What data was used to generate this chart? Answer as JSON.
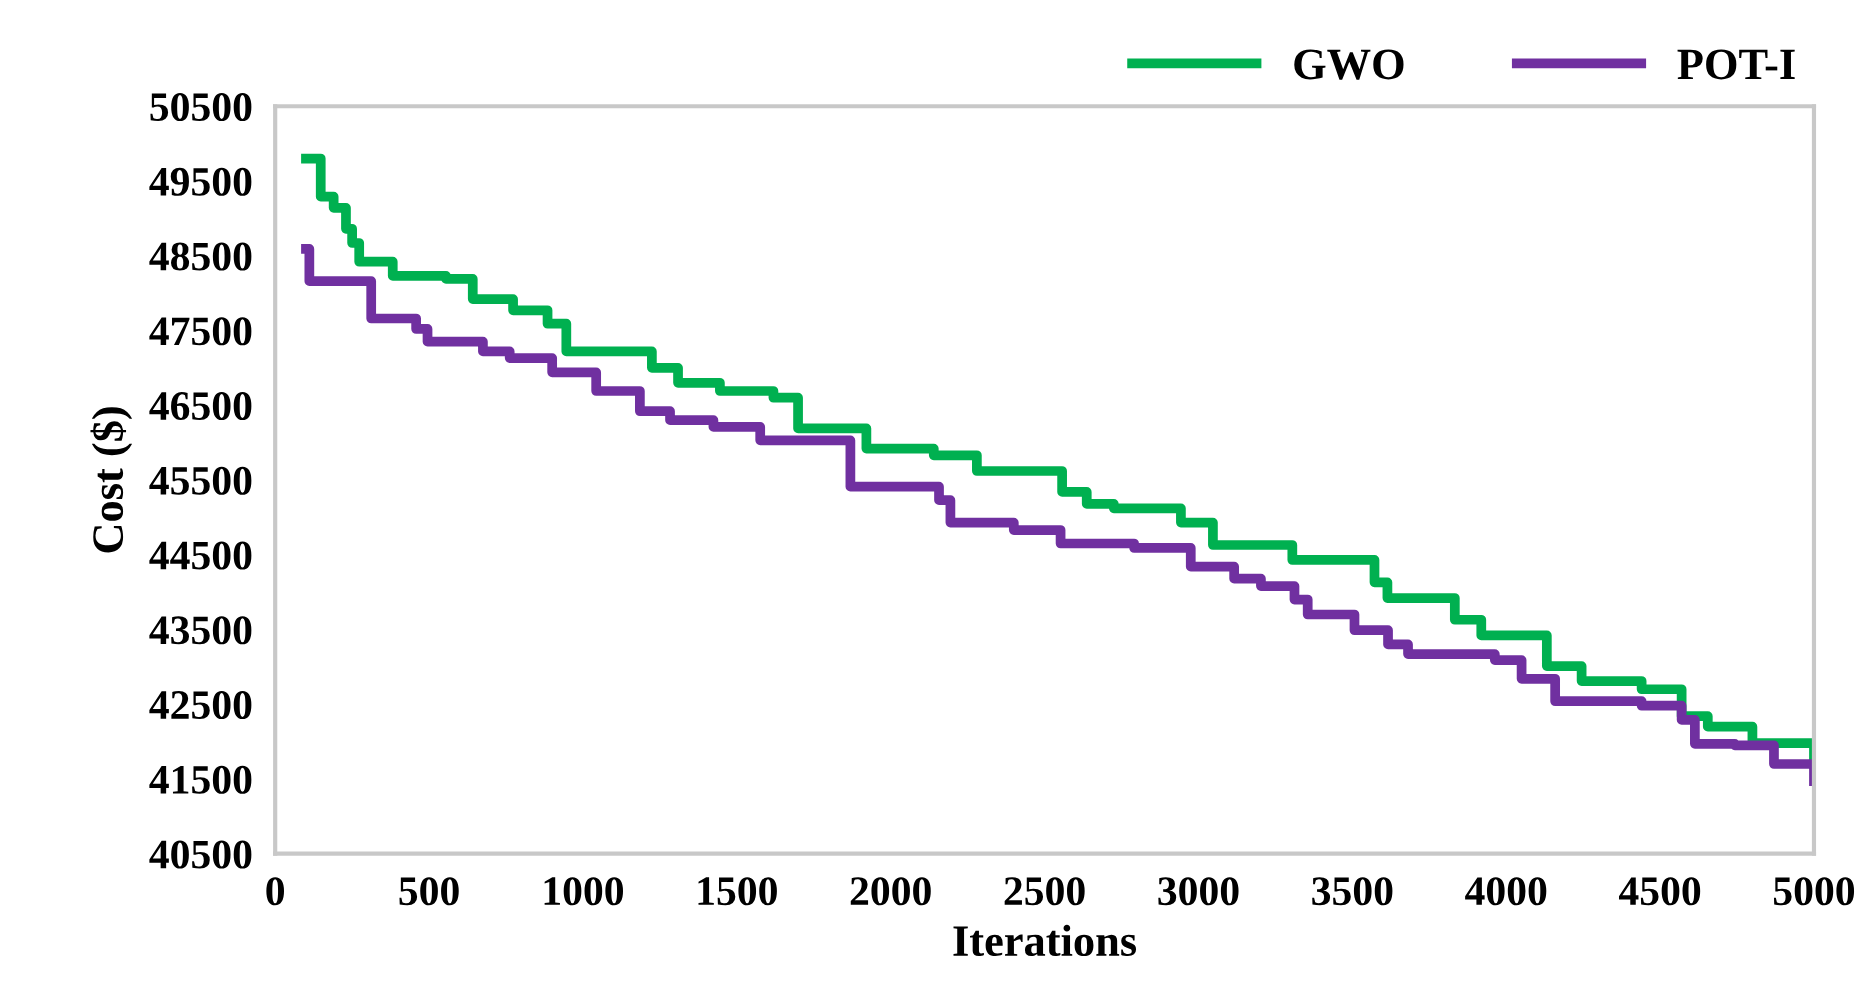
{
  "chart_data": {
    "type": "step",
    "xlabel": "Iterations",
    "ylabel": "Cost ($)",
    "xlim": [
      0,
      5000
    ],
    "xticks": [
      0,
      500,
      1000,
      1500,
      2000,
      2500,
      3000,
      3500,
      4000,
      4500,
      5000
    ],
    "ylim": [
      40500,
      50500
    ],
    "yticks": [
      40500,
      41500,
      42500,
      43500,
      44500,
      45500,
      46500,
      47500,
      48500,
      49500,
      50500
    ],
    "grid": false,
    "legend": "top right",
    "marker": "none",
    "line_style": "solid",
    "series": [
      {
        "name": "GWO",
        "color": "#00b050",
        "x": [
          100,
          148,
          190,
          230,
          250,
          273,
          382,
          555,
          642,
          773,
          885,
          946,
          1224,
          1309,
          1445,
          1619,
          1699,
          1921,
          2140,
          2280,
          2557,
          2637,
          2725,
          2943,
          3047,
          3305,
          3572,
          3614,
          3833,
          3919,
          4132,
          4245,
          4440,
          4570,
          4655,
          4800,
          5000
        ],
        "values": [
          49800,
          49290,
          49140,
          48860,
          48670,
          48420,
          48230,
          48190,
          47920,
          47770,
          47590,
          47220,
          47000,
          46800,
          46690,
          46600,
          46190,
          45920,
          45830,
          45620,
          45340,
          45180,
          45120,
          44930,
          44630,
          44430,
          44130,
          43920,
          43630,
          43420,
          43010,
          42810,
          42700,
          42340,
          42200,
          41980,
          41720
        ]
      },
      {
        "name": "POT-I",
        "color": "#7030a0",
        "x": [
          100,
          111,
          312,
          458,
          495,
          675,
          762,
          900,
          1043,
          1185,
          1283,
          1424,
          1576,
          1869,
          2157,
          2194,
          2400,
          2552,
          2791,
          2975,
          3116,
          3203,
          3312,
          3355,
          3507,
          3616,
          3681,
          3963,
          4050,
          4159,
          4440,
          4570,
          4613,
          4743,
          4870,
          5000
        ],
        "values": [
          48590,
          48160,
          47660,
          47520,
          47350,
          47220,
          47130,
          46940,
          46690,
          46420,
          46300,
          46210,
          46030,
          45410,
          45230,
          44930,
          44830,
          44650,
          44590,
          44340,
          44180,
          44080,
          43900,
          43700,
          43490,
          43300,
          43170,
          43090,
          42840,
          42540,
          42480,
          42290,
          41970,
          41950,
          41700,
          41470
        ]
      }
    ]
  }
}
